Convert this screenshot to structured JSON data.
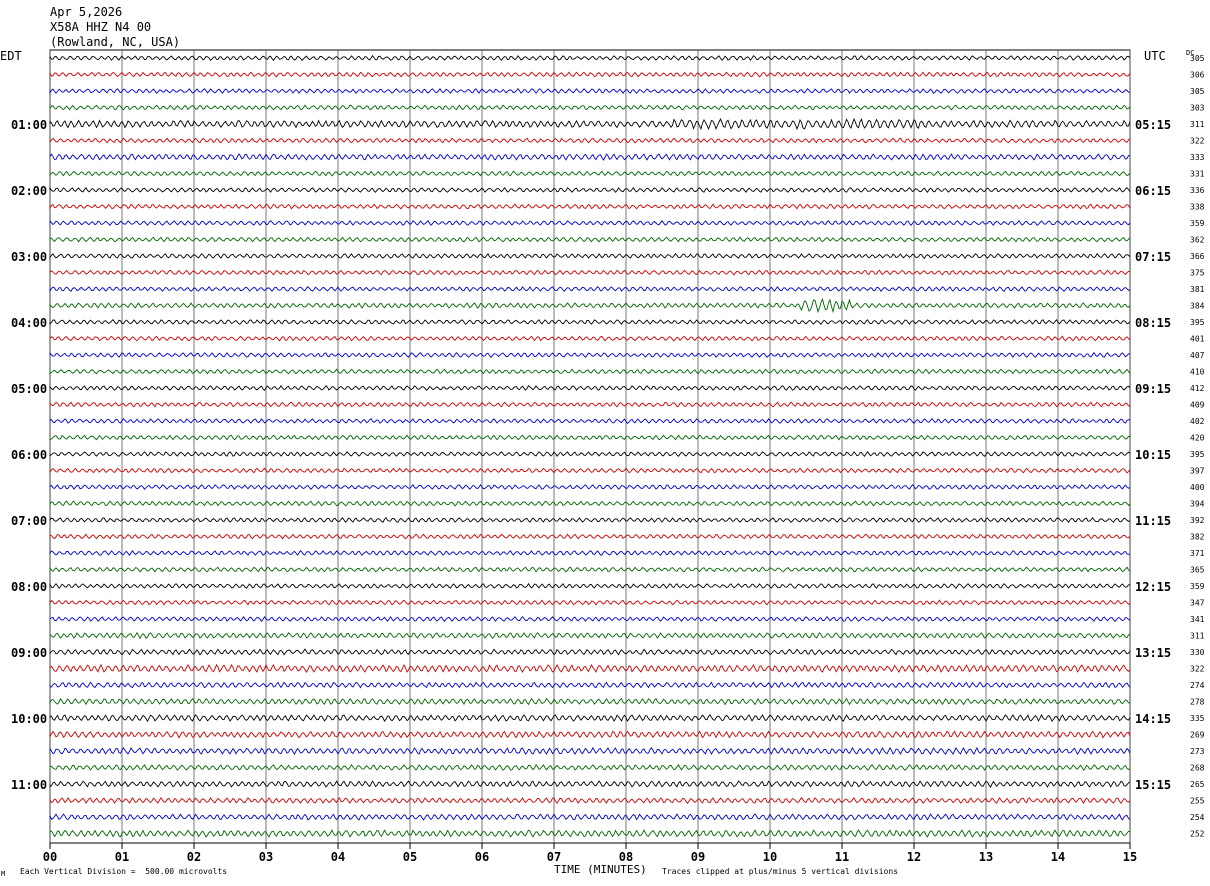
{
  "header": {
    "date": "Apr 5,2026",
    "station": "X58A HHZ N4 00",
    "location": "(Rowland, NC, USA)"
  },
  "labels": {
    "left_tz": "EDT",
    "right_tz": "UTC",
    "dc": "DC"
  },
  "footer": {
    "scale": "Each Vertical Division =  500.00 microvolts",
    "clip": "Traces clipped at plus/minus 5 vertical divisions",
    "mark": "M"
  },
  "chart_data": {
    "type": "line",
    "title": "",
    "xlabel": "TIME (MINUTES)",
    "ylabel": "",
    "xlim": [
      0,
      15
    ],
    "x_ticks": [
      "00",
      "01",
      "02",
      "03",
      "04",
      "05",
      "06",
      "07",
      "08",
      "09",
      "10",
      "11",
      "12",
      "13",
      "14",
      "15"
    ],
    "grid": true,
    "trace_colors": [
      "#000000",
      "#cc0000",
      "#0000cc",
      "#006600"
    ],
    "left_hour_labels": [
      "01:00",
      "02:00",
      "03:00",
      "04:00",
      "05:00",
      "06:00",
      "07:00",
      "08:00",
      "09:00",
      "10:00",
      "11:00"
    ],
    "right_hour_labels": [
      "05:15",
      "06:15",
      "07:15",
      "08:15",
      "09:15",
      "10:15",
      "11:15",
      "12:15",
      "13:15",
      "14:15",
      "15:15"
    ],
    "dc_offsets": [
      305,
      306,
      305,
      303,
      311,
      322,
      333,
      331,
      336,
      338,
      359,
      362,
      366,
      375,
      381,
      384,
      395,
      401,
      407,
      410,
      412,
      409,
      402,
      420,
      395,
      397,
      400,
      394,
      392,
      382,
      371,
      365,
      359,
      347,
      341,
      311,
      330,
      322,
      274,
      278,
      335,
      269,
      273,
      268,
      265,
      255,
      254,
      252
    ],
    "trace_amplitudes": [
      1,
      1,
      1,
      1,
      1.6,
      1,
      1.3,
      1,
      1,
      1,
      1,
      1,
      1,
      1,
      1,
      1.1,
      1,
      1,
      1,
      1,
      1,
      1,
      1,
      1,
      1,
      1,
      1,
      1,
      1,
      1,
      1,
      1,
      1,
      1,
      1,
      1.2,
      1.2,
      1.6,
      1.2,
      1.3,
      1.4,
      1.4,
      1.4,
      1.2,
      1.3,
      1.2,
      1.3,
      1.5
    ]
  }
}
